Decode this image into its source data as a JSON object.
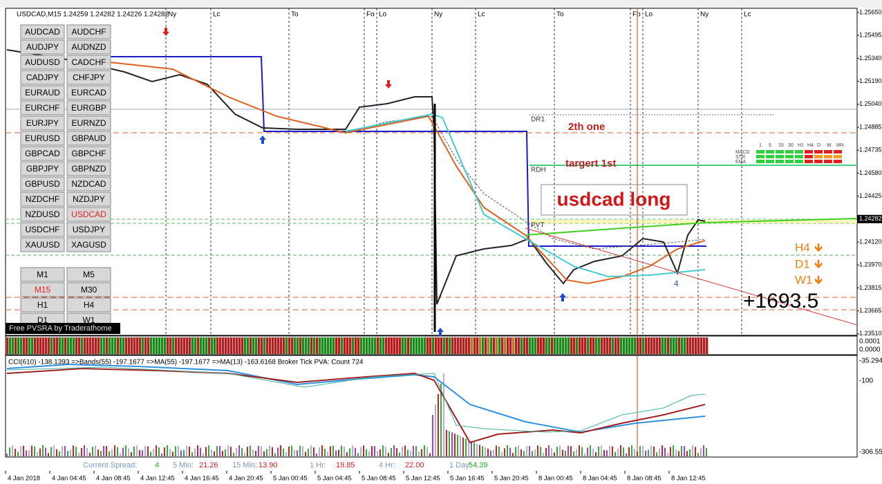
{
  "header": {
    "title": "USDCAD,M15  1.24259 1.24282 1.24226 1.24282"
  },
  "sessions": [
    "Ny",
    "Lc",
    "To",
    "Fo",
    "Lo",
    "Ny",
    "Lc",
    "To",
    "Fo",
    "Lo",
    "Ny",
    "Lc"
  ],
  "symbols": [
    "AUDCAD",
    "AUDCHF",
    "AUDJPY",
    "AUDNZD",
    "AUDUSD",
    "CADCHF",
    "CADJPY",
    "CHFJPY",
    "EURAUD",
    "EURCAD",
    "EURCHF",
    "EURGBP",
    "EURJPY",
    "EURNZD",
    "EURUSD",
    "GBPAUD",
    "GBPCAD",
    "GBPCHF",
    "GBPJPY",
    "GBPNZD",
    "GBPUSD",
    "NZDCAD",
    "NZDCHF",
    "NZDJPY",
    "NZDUSD",
    "USDCAD",
    "USDCHF",
    "USDJPY",
    "XAUUSD",
    "XAGUSD"
  ],
  "timeframes": [
    "M1",
    "M5",
    "M15",
    "M30",
    "H1",
    "H4",
    "D1",
    "W1"
  ],
  "selected": {
    "symbol": "USDCAD",
    "timeframe": "M15"
  },
  "banner": "Free PVSRA by Traderathome",
  "price_axis": [
    "1.25650",
    "1.25495",
    "1.25340",
    "1.25190",
    "1.25040",
    "1.24885",
    "1.24735",
    "1.24580",
    "1.24425",
    "1.24282",
    "1.24120",
    "1.23970",
    "1.23815",
    "1.23665",
    "1.23510"
  ],
  "current_price": "1.24282",
  "annotations": {
    "second": "2th one",
    "first": "targert 1st",
    "trade": "usdcad long",
    "dr1": "DR1",
    "rdh": "RDH",
    "pvt": "PVT",
    "h4": "H4",
    "d1": "D1",
    "w1": "W1",
    "profit": "+1693.5",
    "count": "4"
  },
  "trend_panel": {
    "labels": [
      "MACD",
      "STR",
      "EMA"
    ],
    "columns": [
      "1",
      "5",
      "15",
      "30",
      "H1",
      "H4",
      "D",
      "W",
      "MN"
    ]
  },
  "volume_axis": [
    "0.0001",
    "0.0000"
  ],
  "cci": {
    "legend": "CCI(610) -138.1393 =>Bands(55) -197.1677 =>MA(55) -197.1677 =>MA(13) -163.6168  Broker Tick PVA:   Count  724",
    "axis": [
      "-35.294",
      "-100",
      "-306.55"
    ]
  },
  "status": [
    {
      "label": "Current Spread:",
      "value": "4"
    },
    {
      "label": "5 Min:",
      "value": "21.26"
    },
    {
      "label": "15 Min:",
      "value": "13.90"
    },
    {
      "label": "1 Hr:",
      "value": "19.85"
    },
    {
      "label": "4 Hr:",
      "value": "22.00"
    },
    {
      "label": "1 Day:",
      "value": "54.39"
    }
  ],
  "time_axis": [
    "4 Jan 2018",
    "4 Jan 04:45",
    "4 Jan 08:45",
    "4 Jan 12:45",
    "4 Jan 16:45",
    "4 Jan 20:45",
    "5 Jan 00:45",
    "5 Jan 04:45",
    "5 Jan 08:45",
    "5 Jan 12:45",
    "5 Jan 16:45",
    "5 Jan 20:45",
    "8 Jan 00:45",
    "8 Jan 04:45",
    "8 Jan 08:45",
    "8 Jan 12:45"
  ]
}
